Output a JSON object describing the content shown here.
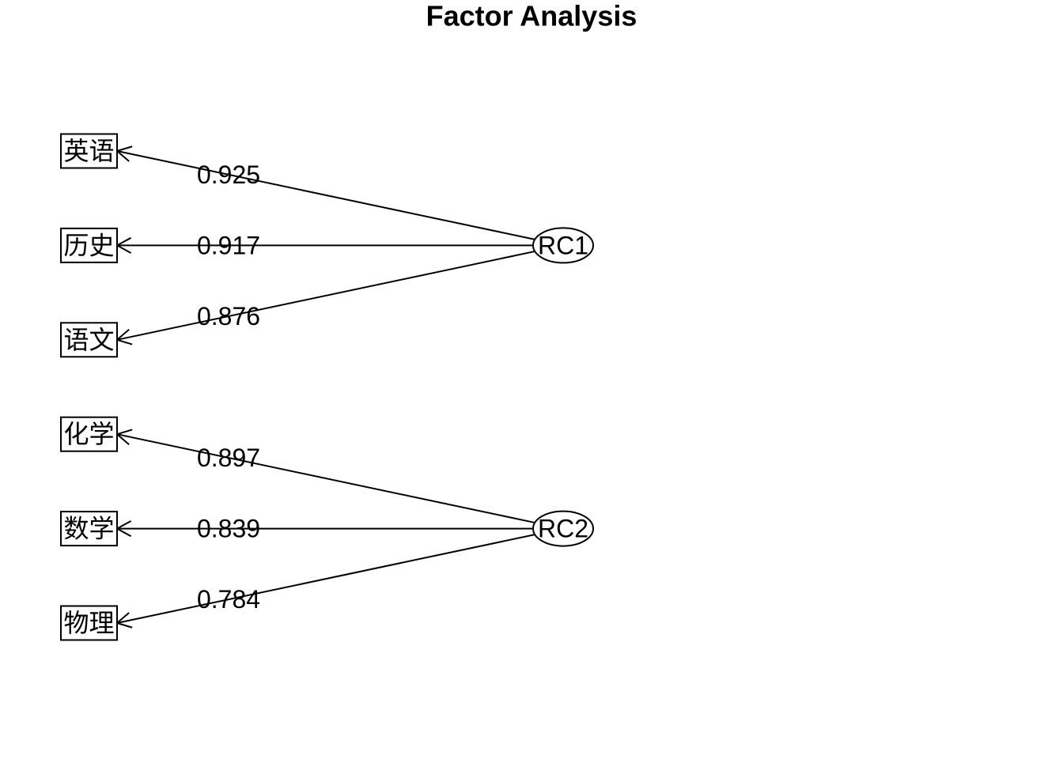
{
  "title": "Factor Analysis",
  "factors": [
    {
      "label": "RC1",
      "items": [
        {
          "variable": "英语",
          "loading": 0.925
        },
        {
          "variable": "历史",
          "loading": 0.917
        },
        {
          "variable": "语文",
          "loading": 0.876
        }
      ]
    },
    {
      "label": "RC2",
      "items": [
        {
          "variable": "化学",
          "loading": 0.897
        },
        {
          "variable": "数学",
          "loading": 0.839
        },
        {
          "variable": "物理",
          "loading": 0.784
        }
      ]
    }
  ]
}
